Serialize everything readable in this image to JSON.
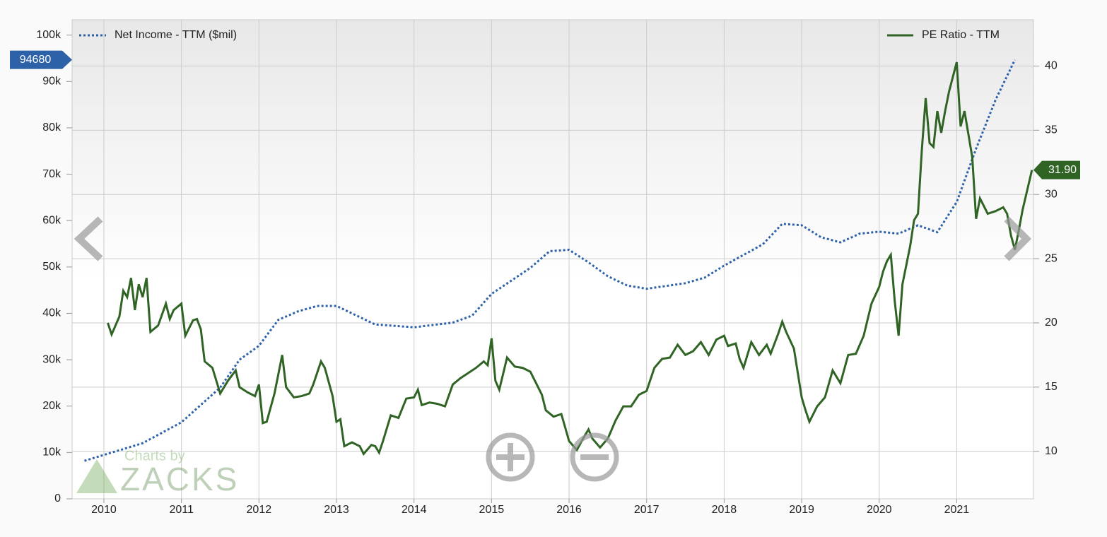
{
  "chart_data": {
    "type": "line",
    "xlim": [
      2009.59,
      2021.99
    ],
    "xticks": [
      2010,
      2011,
      2012,
      2013,
      2014,
      2015,
      2016,
      2017,
      2018,
      2019,
      2020,
      2021
    ],
    "ylim": [
      0,
      103300
    ],
    "yticks": [
      0,
      {
        "value": 10000,
        "label": "10k"
      },
      {
        "value": 20000,
        "label": "20k"
      },
      {
        "value": 30000,
        "label": "30k"
      },
      {
        "value": 40000,
        "label": "40k"
      },
      {
        "value": 50000,
        "label": "50k"
      },
      {
        "value": 60000,
        "label": "60k"
      },
      {
        "value": 70000,
        "label": "70k"
      },
      {
        "value": 80000,
        "label": "80k"
      },
      {
        "value": 90000,
        "label": "90k"
      },
      {
        "value": 100000,
        "label": "100k"
      }
    ],
    "y2lim": [
      6.3,
      43.6
    ],
    "y2ticks": [
      10,
      15,
      20,
      25,
      30,
      35,
      40
    ],
    "grid": true,
    "series": [
      {
        "name": "Net Income - TTM ($mil)",
        "color": "#2e62a8",
        "dash": "dotted",
        "end_label": "94680",
        "x": [
          2009.75,
          2010.5,
          2011,
          2011.5,
          2011.75,
          2012,
          2012.25,
          2012.5,
          2012.75,
          2013,
          2013.25,
          2013.5,
          2014,
          2014.5,
          2014.75,
          2015,
          2015.5,
          2015.75,
          2016,
          2016.25,
          2016.5,
          2016.75,
          2017,
          2017.5,
          2017.75,
          2018,
          2018.5,
          2018.75,
          2019,
          2019.25,
          2019.5,
          2019.75,
          2020,
          2020.25,
          2020.5,
          2020.75,
          2021,
          2021.25,
          2021.5,
          2021.75
        ],
        "values": [
          8200,
          12000,
          16500,
          24000,
          30000,
          33000,
          38600,
          40400,
          41600,
          41600,
          39600,
          37600,
          37000,
          38000,
          39500,
          44200,
          49800,
          53400,
          53700,
          51000,
          48000,
          46000,
          45300,
          46500,
          47700,
          50300,
          54900,
          59300,
          59000,
          56400,
          55300,
          57200,
          57600,
          57200,
          59000,
          57500,
          64000,
          75500,
          86000,
          94680
        ]
      },
      {
        "name": "PE Ratio - TTM",
        "color": "#2f6424",
        "axis": "y2",
        "end_label": "31.90",
        "x": [
          2010.05,
          2010.1,
          2010.2,
          2010.25,
          2010.3,
          2010.35,
          2010.4,
          2010.45,
          2010.5,
          2010.55,
          2010.6,
          2010.7,
          2010.8,
          2010.85,
          2010.9,
          2011.0,
          2011.05,
          2011.15,
          2011.2,
          2011.25,
          2011.3,
          2011.4,
          2011.5,
          2011.6,
          2011.7,
          2011.75,
          2011.85,
          2011.95,
          2012.0,
          2012.05,
          2012.1,
          2012.2,
          2012.3,
          2012.35,
          2012.45,
          2012.55,
          2012.65,
          2012.7,
          2012.8,
          2012.85,
          2012.95,
          2013.0,
          2013.05,
          2013.1,
          2013.2,
          2013.3,
          2013.35,
          2013.45,
          2013.5,
          2013.55,
          2013.6,
          2013.7,
          2013.8,
          2013.9,
          2014.0,
          2014.05,
          2014.1,
          2014.2,
          2014.3,
          2014.4,
          2014.5,
          2014.6,
          2014.7,
          2014.8,
          2014.9,
          2014.95,
          2015.0,
          2015.05,
          2015.1,
          2015.2,
          2015.3,
          2015.4,
          2015.5,
          2015.6,
          2015.65,
          2015.7,
          2015.8,
          2015.9,
          2016.0,
          2016.1,
          2016.2,
          2016.25,
          2016.3,
          2016.4,
          2016.5,
          2016.6,
          2016.7,
          2016.8,
          2016.9,
          2017.0,
          2017.1,
          2017.2,
          2017.3,
          2017.4,
          2017.5,
          2017.6,
          2017.7,
          2017.8,
          2017.9,
          2018.0,
          2018.05,
          2018.15,
          2018.2,
          2018.25,
          2018.35,
          2018.45,
          2018.55,
          2018.6,
          2018.7,
          2018.75,
          2018.8,
          2018.9,
          2019.0,
          2019.05,
          2019.1,
          2019.2,
          2019.3,
          2019.4,
          2019.5,
          2019.6,
          2019.7,
          2019.8,
          2019.9,
          2020.0,
          2020.05,
          2020.1,
          2020.15,
          2020.2,
          2020.25,
          2020.3,
          2020.4,
          2020.45,
          2020.5,
          2020.55,
          2020.6,
          2020.65,
          2020.7,
          2020.75,
          2020.8,
          2020.85,
          2020.9,
          2021.0,
          2021.05,
          2021.1,
          2021.2,
          2021.25,
          2021.3,
          2021.4,
          2021.5,
          2021.6,
          2021.65,
          2021.7,
          2021.75,
          2021.8,
          2021.85,
          2021.97
        ],
        "values": [
          20,
          19.1,
          20.5,
          22.5,
          22,
          23.5,
          21,
          23,
          22,
          23.5,
          19.3,
          19.8,
          21.5,
          20.3,
          21,
          21.5,
          19,
          20.2,
          20.3,
          19.5,
          17,
          16.5,
          14.5,
          15.5,
          16.3,
          15,
          14.6,
          14.3,
          15.2,
          12.2,
          12.3,
          14.5,
          17.5,
          15,
          14.2,
          14.3,
          14.5,
          15.2,
          17,
          16.5,
          14.3,
          12.3,
          12.5,
          10.4,
          10.7,
          10.4,
          9.8,
          10.5,
          10.4,
          9.9,
          10.8,
          12.8,
          12.6,
          14.1,
          14.2,
          14.8,
          13.6,
          13.8,
          13.7,
          13.5,
          15.2,
          15.7,
          16.1,
          16.5,
          17,
          16.7,
          18.8,
          15.5,
          14.8,
          17.3,
          16.6,
          16.5,
          16.2,
          15,
          14.4,
          13.2,
          12.7,
          12.9,
          10.8,
          10.1,
          11.2,
          11.7,
          11,
          10.3,
          11,
          12.4,
          13.5,
          13.5,
          14.4,
          14.7,
          16.5,
          17.2,
          17.3,
          18.3,
          17.5,
          17.8,
          18.5,
          17.5,
          18.7,
          19,
          18.2,
          18.4,
          17.2,
          16.5,
          18.5,
          17.5,
          18.3,
          17.6,
          19.2,
          20.1,
          19.3,
          18,
          14.2,
          13.2,
          12.3,
          13.5,
          14.2,
          16.3,
          15.3,
          17.5,
          17.6,
          19,
          21.5,
          22.8,
          24,
          24.8,
          25.3,
          21.7,
          19,
          23,
          26,
          28,
          28.5,
          33.5,
          37.5,
          34,
          33.7,
          36.5,
          34.8,
          36.5,
          38,
          40.3,
          35.3,
          36.5,
          32.9,
          28.1,
          29.7,
          28.5,
          28.7,
          29,
          28.5,
          26.8,
          25.7,
          27.2,
          28.8,
          31.9
        ]
      }
    ],
    "watermark": {
      "top": "Charts by",
      "bottom": "ZACKS"
    }
  }
}
